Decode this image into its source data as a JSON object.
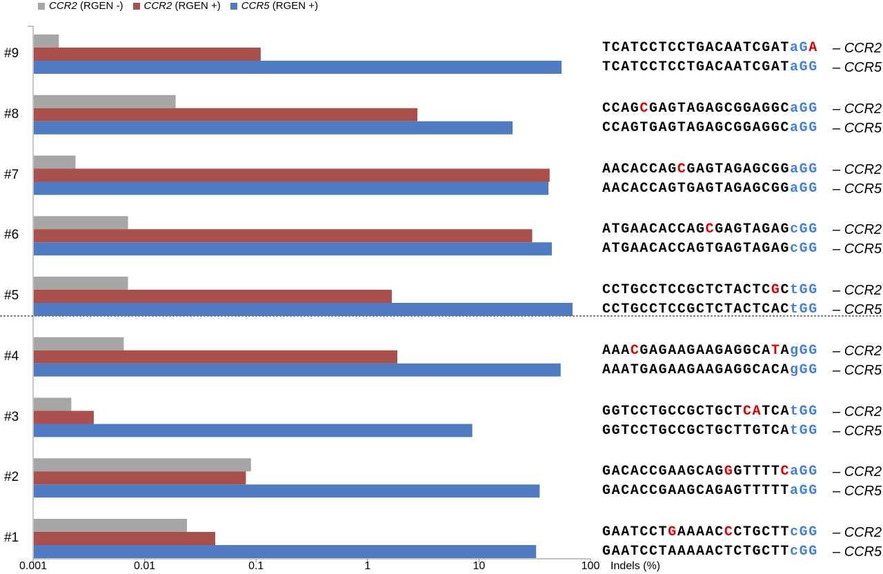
{
  "chart_data": {
    "type": "bar",
    "orientation": "horizontal",
    "xscale": "log",
    "xlim": [
      0.001,
      100
    ],
    "xlabel": "Indels (%)",
    "xticks": [
      "0.001",
      "0.01",
      "0.1",
      "1",
      "10",
      "100"
    ],
    "xtick_values": [
      0.001,
      0.01,
      0.1,
      1,
      10,
      100
    ],
    "categories": [
      "#9",
      "#8",
      "#7",
      "#6",
      "#5",
      "#4",
      "#3",
      "#2",
      "#1"
    ],
    "legend_placement": "top-left",
    "series": [
      {
        "name": "CCR2 (RGEN -)",
        "gene": "CCR2",
        "suffix": " (RGEN -)",
        "color": "#a6a6a6",
        "values": [
          0.0017,
          0.019,
          0.0024,
          0.0071,
          0.0071,
          0.0065,
          0.0022,
          0.09,
          0.024
        ]
      },
      {
        "name": "CCR2 (RGEN +)",
        "gene": "CCR2",
        "suffix": " (RGEN +)",
        "color": "#a9504d",
        "values": [
          0.11,
          2.8,
          43,
          30,
          1.65,
          1.85,
          0.0035,
          0.081,
          0.043
        ]
      },
      {
        "name": "CCR5 (RGEN +)",
        "gene": "CCR5",
        "suffix": " (RGEN +)",
        "color": "#4f7bc2",
        "values": [
          55,
          20,
          42,
          45,
          69,
          54,
          8.7,
          35,
          32.5
        ]
      }
    ]
  },
  "sequences": [
    {
      "ccr2": [
        [
          "TCATCCTCCTGACAATCGAT",
          "k"
        ],
        [
          "aG",
          "b"
        ],
        [
          "A",
          "r"
        ]
      ],
      "ccr5": [
        [
          "TCATCCTCCTGACAATCGAT",
          "k"
        ],
        [
          "aGG",
          "b"
        ]
      ]
    },
    {
      "ccr2": [
        [
          "CCAG",
          "k"
        ],
        [
          "C",
          "r"
        ],
        [
          "GAGTAGAGCGGAGGC",
          "k"
        ],
        [
          "aGG",
          "b"
        ]
      ],
      "ccr5": [
        [
          "CCAGTGAGTAGAGCGGAGGC",
          "k"
        ],
        [
          "aGG",
          "b"
        ]
      ]
    },
    {
      "ccr2": [
        [
          "AACACCAG",
          "k"
        ],
        [
          "C",
          "r"
        ],
        [
          "GAGTAGAGCGG",
          "k"
        ],
        [
          "aGG",
          "b"
        ]
      ],
      "ccr5": [
        [
          "AACACCAGTGAGTAGAGCGG",
          "k"
        ],
        [
          "aGG",
          "b"
        ]
      ]
    },
    {
      "ccr2": [
        [
          "ATGAACACCAG",
          "k"
        ],
        [
          "C",
          "r"
        ],
        [
          "GAGTAGAG",
          "k"
        ],
        [
          "cGG",
          "b"
        ]
      ],
      "ccr5": [
        [
          "ATGAACACCAGTGAGTAGAG",
          "k"
        ],
        [
          "cGG",
          "b"
        ]
      ]
    },
    {
      "ccr2": [
        [
          "CCTGCCTCCGCTCTACTC",
          "k"
        ],
        [
          "G",
          "r"
        ],
        [
          "C",
          "k"
        ],
        [
          "tGG",
          "b"
        ]
      ],
      "ccr5": [
        [
          "CCTGCCTCCGCTCTACTCAC",
          "k"
        ],
        [
          "tGG",
          "b"
        ]
      ]
    },
    {
      "ccr2": [
        [
          "AAA",
          "k"
        ],
        [
          "C",
          "r"
        ],
        [
          "GAGAAGAAGAGGCA",
          "k"
        ],
        [
          "T",
          "r"
        ],
        [
          "A",
          "k"
        ],
        [
          "gGG",
          "b"
        ]
      ],
      "ccr5": [
        [
          "AAATGAGAAGAAGAGGCACA",
          "k"
        ],
        [
          "gGG",
          "b"
        ]
      ]
    },
    {
      "ccr2": [
        [
          "GGTCCTGCCGCTGCT",
          "k"
        ],
        [
          "CA",
          "r"
        ],
        [
          "TCA",
          "k"
        ],
        [
          "tGG",
          "b"
        ]
      ],
      "ccr5": [
        [
          "GGTCCTGCCGCTGCTTGTCA",
          "k"
        ],
        [
          "tGG",
          "b"
        ]
      ]
    },
    {
      "ccr2": [
        [
          "GACACCGAAGCAG",
          "k"
        ],
        [
          "G",
          "r"
        ],
        [
          "GTTTT",
          "k"
        ],
        [
          "C",
          "r"
        ],
        [
          "aGG",
          "b"
        ]
      ],
      "ccr5": [
        [
          "GACACCGAAGCAGAGTTTTT",
          "k"
        ],
        [
          "aGG",
          "b"
        ]
      ]
    },
    {
      "ccr2": [
        [
          "GAATCCT",
          "k"
        ],
        [
          "G",
          "r"
        ],
        [
          "AAAAC",
          "k"
        ],
        [
          "C",
          "r"
        ],
        [
          "CTGCTT",
          "k"
        ],
        [
          "cGG",
          "b"
        ]
      ],
      "ccr5": [
        [
          "GAATCCTAAAAACTCTGCTT",
          "k"
        ],
        [
          "cGG",
          "b"
        ]
      ]
    }
  ],
  "gene_labels": {
    "dash": "–",
    "ccr2": "CCR2",
    "ccr5": "CCR5"
  }
}
